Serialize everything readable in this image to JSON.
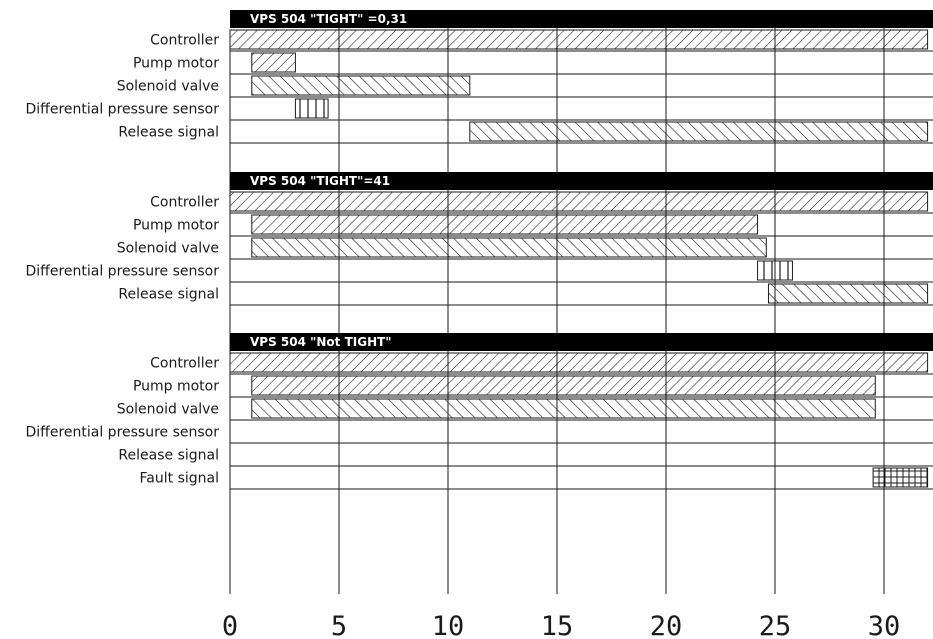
{
  "chart_data": {
    "type": "timing-diagram",
    "x_ticks": [
      "0",
      "5",
      "10",
      "15",
      "20",
      "25",
      "30"
    ],
    "x_range": [
      0,
      32
    ],
    "gridlines_at": [
      5,
      10,
      15,
      20,
      25,
      30
    ],
    "sections": [
      {
        "title": "VPS 504 \"TIGHT\" =0,31",
        "rows": [
          {
            "label": "Controller",
            "pattern": "diag-fwd",
            "segments": [
              [
                0,
                32
              ]
            ]
          },
          {
            "label": "Pump motor",
            "pattern": "diag-fwd",
            "segments": [
              [
                1,
                3
              ]
            ]
          },
          {
            "label": "Solenoid valve",
            "pattern": "diag-back",
            "segments": [
              [
                1,
                11
              ]
            ]
          },
          {
            "label": "Differential pressure sensor",
            "pattern": "vertical",
            "segments": [
              [
                3,
                4.5
              ]
            ]
          },
          {
            "label": "Release signal",
            "pattern": "diag-back",
            "segments": [
              [
                11,
                32
              ]
            ]
          }
        ]
      },
      {
        "title": "VPS 504 \"TIGHT\"=41",
        "rows": [
          {
            "label": "Controller",
            "pattern": "diag-fwd",
            "segments": [
              [
                0,
                32
              ]
            ]
          },
          {
            "label": "Pump motor",
            "pattern": "diag-fwd",
            "segments": [
              [
                1,
                24.2
              ]
            ]
          },
          {
            "label": "Solenoid valve",
            "pattern": "diag-back",
            "segments": [
              [
                1,
                24.6
              ]
            ]
          },
          {
            "label": "Differential pressure sensor",
            "pattern": "vertical",
            "segments": [
              [
                24.2,
                25.8
              ]
            ]
          },
          {
            "label": "Release signal",
            "pattern": "diag-back",
            "segments": [
              [
                24.7,
                32
              ]
            ]
          }
        ]
      },
      {
        "title": "VPS 504 \"Not TIGHT\"",
        "rows": [
          {
            "label": "Controller",
            "pattern": "diag-fwd",
            "segments": [
              [
                0,
                32
              ]
            ]
          },
          {
            "label": "Pump motor",
            "pattern": "diag-fwd",
            "segments": [
              [
                1,
                29.6
              ]
            ]
          },
          {
            "label": "Solenoid valve",
            "pattern": "diag-back",
            "segments": [
              [
                1,
                29.6
              ]
            ]
          },
          {
            "label": "Differential pressure sensor",
            "pattern": "none",
            "segments": []
          },
          {
            "label": "Release signal",
            "pattern": "none",
            "segments": []
          },
          {
            "label": "Fault signal",
            "pattern": "grid",
            "segments": [
              [
                29.5,
                32
              ]
            ]
          }
        ]
      }
    ]
  },
  "colors": {
    "ink": "#1a1a1a",
    "header": "#000000",
    "background": "#ffffff"
  }
}
